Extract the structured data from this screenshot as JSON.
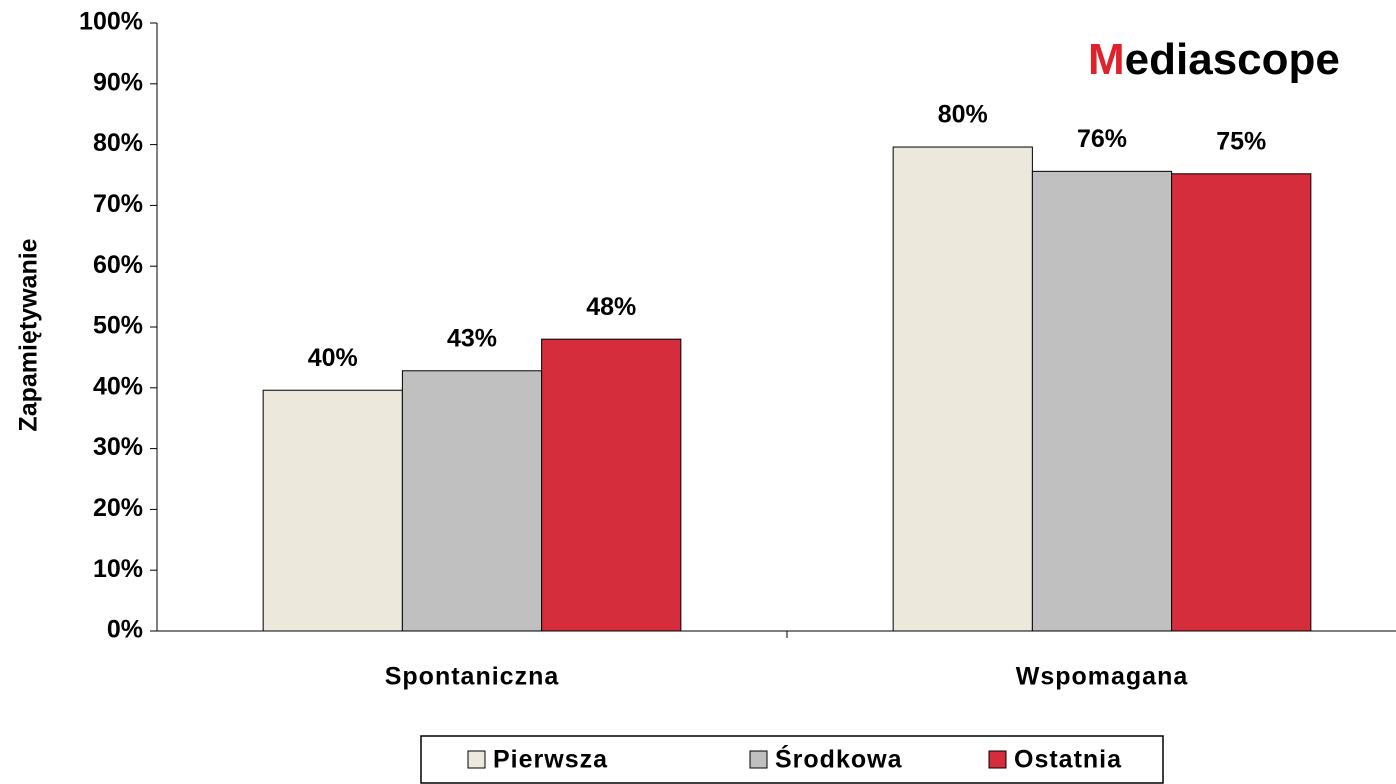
{
  "chart_data": {
    "type": "bar",
    "logo": "Mediascope",
    "y_label": "Zapamiętywanie",
    "categories": [
      "Spontaniczna",
      "Wspomagana"
    ],
    "series": [
      {
        "name": "Pierwsza",
        "color": "#ece9dc",
        "values": [
          39.6,
          79.6
        ],
        "value_labels": [
          "40%",
          "80%"
        ]
      },
      {
        "name": "Środkowa",
        "color": "#c0c0c0",
        "values": [
          42.8,
          75.6
        ],
        "value_labels": [
          "43%",
          "76%"
        ]
      },
      {
        "name": "Ostatnia",
        "color": "#d62d3c",
        "values": [
          48,
          75.2
        ],
        "value_labels": [
          "48%",
          "75%"
        ]
      }
    ],
    "ylim": [
      0,
      100
    ],
    "yticks": [
      {
        "value": 0,
        "label": "0%"
      },
      {
        "value": 10,
        "label": "10%"
      },
      {
        "value": 20,
        "label": "20%"
      },
      {
        "value": 30,
        "label": "30%"
      },
      {
        "value": 40,
        "label": "40%"
      },
      {
        "value": 50,
        "label": "50%"
      },
      {
        "value": 60,
        "label": "60%"
      },
      {
        "value": 70,
        "label": "70%"
      },
      {
        "value": 80,
        "label": "80%"
      },
      {
        "value": 90,
        "label": "90%"
      },
      {
        "value": 100,
        "label": "100%"
      }
    ],
    "grid": false,
    "legend": "bottom"
  }
}
